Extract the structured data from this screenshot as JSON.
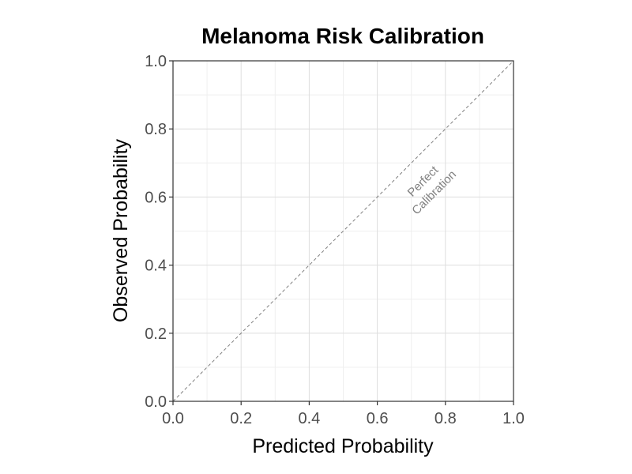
{
  "chart_data": {
    "type": "line",
    "title": "Melanoma Risk Calibration",
    "xlabel": "Predicted Probability",
    "ylabel": "Observed Probability",
    "xlim": [
      0,
      1
    ],
    "ylim": [
      0,
      1
    ],
    "x_ticks": [
      "0.0",
      "0.2",
      "0.4",
      "0.6",
      "0.8",
      "1.0"
    ],
    "y_ticks": [
      "0.0",
      "0.2",
      "0.4",
      "0.6",
      "0.8",
      "1.0"
    ],
    "x_tick_values": [
      0,
      0.2,
      0.4,
      0.6,
      0.8,
      1.0
    ],
    "y_tick_values": [
      0,
      0.2,
      0.4,
      0.6,
      0.8,
      1.0
    ],
    "grid": true,
    "series": [
      {
        "x": [
          0,
          1
        ],
        "y": [
          0,
          1
        ],
        "style": "dashed",
        "color": "#808080"
      }
    ],
    "annotations": [
      {
        "lines": [
          "Perfect",
          "Calibration"
        ],
        "x": 0.75,
        "y": 0.63,
        "angle": 45
      }
    ],
    "colors": {
      "grid_major": "#dedede",
      "grid_minor": "#efefef",
      "panel_border": "#333333",
      "reference_line": "#808080"
    }
  }
}
